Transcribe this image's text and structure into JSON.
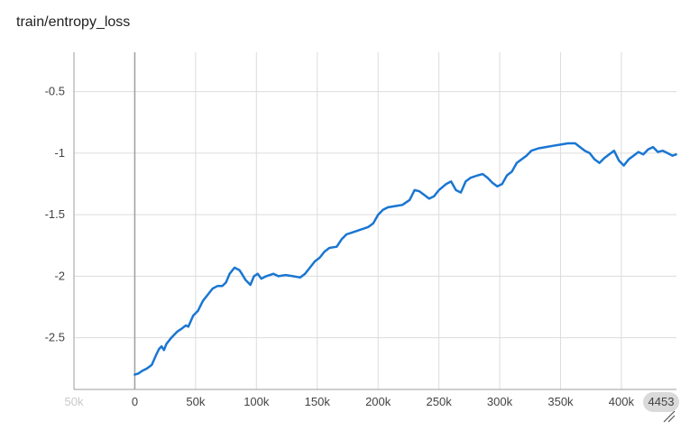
{
  "chart_data": {
    "type": "line",
    "title": "train/entropy_loss",
    "xlabel": "",
    "ylabel": "",
    "xlim": [
      -50000,
      445300
    ],
    "ylim": [
      -2.92,
      -0.18
    ],
    "x_ticks": [
      {
        "value": -50000,
        "label": "50k",
        "faded": true
      },
      {
        "value": 0,
        "label": "0"
      },
      {
        "value": 50000,
        "label": "50k"
      },
      {
        "value": 100000,
        "label": "100k"
      },
      {
        "value": 150000,
        "label": "150k"
      },
      {
        "value": 200000,
        "label": "200k"
      },
      {
        "value": 250000,
        "label": "250k"
      },
      {
        "value": 300000,
        "label": "300k"
      },
      {
        "value": 350000,
        "label": "350k"
      },
      {
        "value": 400000,
        "label": "400k"
      }
    ],
    "x_end_label": "4453",
    "y_ticks": [
      {
        "value": -0.5,
        "label": "-0.5"
      },
      {
        "value": -1,
        "label": "-1"
      },
      {
        "value": -1.5,
        "label": "-1.5"
      },
      {
        "value": -2,
        "label": "-2"
      },
      {
        "value": -2.5,
        "label": "-2.5"
      }
    ],
    "grid": true,
    "series": [
      {
        "color": "#1976d2",
        "points": [
          [
            0,
            -2.8
          ],
          [
            3000,
            -2.79
          ],
          [
            6000,
            -2.77
          ],
          [
            10000,
            -2.75
          ],
          [
            14000,
            -2.72
          ],
          [
            18000,
            -2.63
          ],
          [
            20000,
            -2.59
          ],
          [
            22000,
            -2.57
          ],
          [
            24000,
            -2.6
          ],
          [
            26000,
            -2.55
          ],
          [
            30000,
            -2.5
          ],
          [
            35000,
            -2.45
          ],
          [
            38000,
            -2.43
          ],
          [
            42000,
            -2.4
          ],
          [
            44000,
            -2.41
          ],
          [
            48000,
            -2.32
          ],
          [
            52000,
            -2.28
          ],
          [
            56000,
            -2.2
          ],
          [
            60000,
            -2.15
          ],
          [
            64000,
            -2.1
          ],
          [
            68000,
            -2.08
          ],
          [
            72000,
            -2.08
          ],
          [
            75000,
            -2.05
          ],
          [
            78000,
            -1.98
          ],
          [
            82000,
            -1.93
          ],
          [
            86000,
            -1.95
          ],
          [
            88000,
            -1.98
          ],
          [
            91000,
            -2.03
          ],
          [
            95000,
            -2.07
          ],
          [
            98000,
            -2.0
          ],
          [
            101000,
            -1.98
          ],
          [
            104000,
            -2.02
          ],
          [
            108000,
            -2.0
          ],
          [
            114000,
            -1.98
          ],
          [
            118000,
            -2.0
          ],
          [
            124000,
            -1.99
          ],
          [
            130000,
            -2.0
          ],
          [
            136000,
            -2.01
          ],
          [
            140000,
            -1.98
          ],
          [
            144000,
            -1.93
          ],
          [
            148000,
            -1.88
          ],
          [
            152000,
            -1.85
          ],
          [
            156000,
            -1.8
          ],
          [
            160000,
            -1.77
          ],
          [
            166000,
            -1.76
          ],
          [
            170000,
            -1.7
          ],
          [
            174000,
            -1.66
          ],
          [
            180000,
            -1.64
          ],
          [
            186000,
            -1.62
          ],
          [
            192000,
            -1.6
          ],
          [
            196000,
            -1.57
          ],
          [
            200000,
            -1.5
          ],
          [
            204000,
            -1.46
          ],
          [
            208000,
            -1.44
          ],
          [
            214000,
            -1.43
          ],
          [
            220000,
            -1.42
          ],
          [
            226000,
            -1.38
          ],
          [
            230000,
            -1.3
          ],
          [
            234000,
            -1.31
          ],
          [
            238000,
            -1.34
          ],
          [
            242000,
            -1.37
          ],
          [
            246000,
            -1.35
          ],
          [
            250000,
            -1.3
          ],
          [
            256000,
            -1.25
          ],
          [
            260000,
            -1.23
          ],
          [
            264000,
            -1.3
          ],
          [
            268000,
            -1.32
          ],
          [
            272000,
            -1.23
          ],
          [
            276000,
            -1.2
          ],
          [
            282000,
            -1.18
          ],
          [
            286000,
            -1.17
          ],
          [
            290000,
            -1.2
          ],
          [
            294000,
            -1.24
          ],
          [
            298000,
            -1.27
          ],
          [
            302000,
            -1.25
          ],
          [
            306000,
            -1.18
          ],
          [
            310000,
            -1.15
          ],
          [
            314000,
            -1.08
          ],
          [
            318000,
            -1.05
          ],
          [
            322000,
            -1.02
          ],
          [
            326000,
            -0.98
          ],
          [
            332000,
            -0.96
          ],
          [
            338000,
            -0.95
          ],
          [
            344000,
            -0.94
          ],
          [
            350000,
            -0.93
          ],
          [
            356000,
            -0.92
          ],
          [
            362000,
            -0.92
          ],
          [
            366000,
            -0.95
          ],
          [
            370000,
            -0.98
          ],
          [
            374000,
            -1.0
          ],
          [
            378000,
            -1.05
          ],
          [
            382000,
            -1.08
          ],
          [
            386000,
            -1.04
          ],
          [
            390000,
            -1.01
          ],
          [
            394000,
            -0.98
          ],
          [
            398000,
            -1.06
          ],
          [
            402000,
            -1.1
          ],
          [
            406000,
            -1.05
          ],
          [
            410000,
            -1.02
          ],
          [
            414000,
            -0.99
          ],
          [
            418000,
            -1.01
          ],
          [
            422000,
            -0.97
          ],
          [
            426000,
            -0.95
          ],
          [
            430000,
            -0.99
          ],
          [
            434000,
            -0.98
          ],
          [
            438000,
            -1.0
          ],
          [
            442000,
            -1.02
          ],
          [
            445000,
            -1.01
          ]
        ]
      }
    ]
  }
}
